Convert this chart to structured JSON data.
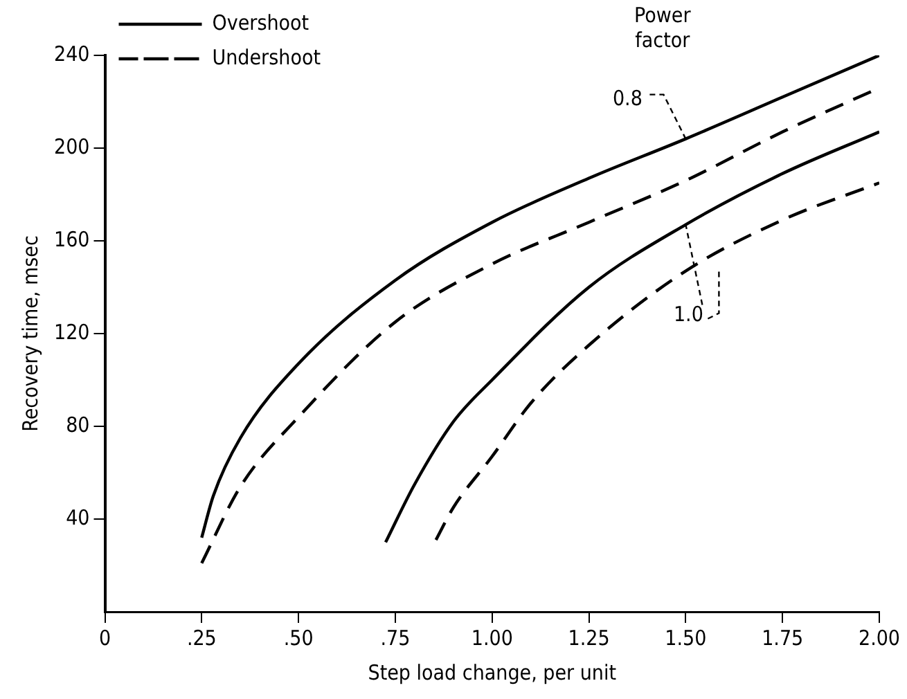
{
  "chart_data": {
    "type": "line",
    "xlabel": "Step load change, per unit",
    "ylabel": "Recovery time, msec",
    "xlim": [
      0,
      2
    ],
    "ylim": [
      0,
      240
    ],
    "xticks": [
      0,
      {
        "value": 0.25,
        "label": ".25"
      },
      {
        "value": 0.5,
        "label": ".50"
      },
      {
        "value": 0.75,
        "label": ".75"
      },
      {
        "value": 1,
        "label": "1.00"
      },
      {
        "value": 1.25,
        "label": "1.25"
      },
      {
        "value": 1.5,
        "label": "1.50"
      },
      {
        "value": 1.75,
        "label": "1.75"
      },
      {
        "value": 2,
        "label": "2.00"
      }
    ],
    "yticks": [
      40,
      80,
      120,
      160,
      200,
      240
    ],
    "grid": false,
    "legend": "top left",
    "marker": "none",
    "series": [
      {
        "name": "Overshoot",
        "color": "#000000",
        "line_style": "solid",
        "x": [
          0.25,
          0.28,
          0.35,
          0.5,
          0.75,
          1.0,
          1.25,
          1.5,
          1.75,
          2.0
        ],
        "values": [
          32,
          50,
          75,
          107,
          143,
          168,
          187,
          204,
          222,
          240
        ]
      },
      {
        "name": "Undershoot",
        "color": "#000000",
        "line_style": "dashed",
        "x": [
          0.25,
          0.35,
          0.5,
          0.75,
          1.0,
          1.25,
          1.5,
          1.75,
          2.0
        ],
        "values": [
          21,
          54,
          84,
          125,
          150,
          168,
          186,
          207,
          226
        ]
      },
      {
        "color": "#000000",
        "line_style": "solid",
        "x": [
          0.725,
          0.8,
          0.9,
          1.0,
          1.25,
          1.5,
          1.75,
          2.0
        ],
        "values": [
          30,
          55,
          82,
          100,
          140,
          167,
          189,
          207
        ]
      },
      {
        "color": "#000000",
        "line_style": "dashed",
        "x": [
          0.855,
          0.9,
          1.0,
          1.1,
          1.25,
          1.5,
          1.75,
          2.0
        ],
        "values": [
          31,
          45,
          67,
          90,
          115,
          147,
          169,
          185
        ]
      }
    ],
    "annotations": [
      "Power factor",
      {
        "text": "0.8",
        "x": 1.5,
        "y": 204
      },
      {
        "text": "1.0",
        "x": 1.5,
        "y": 167
      }
    ]
  }
}
